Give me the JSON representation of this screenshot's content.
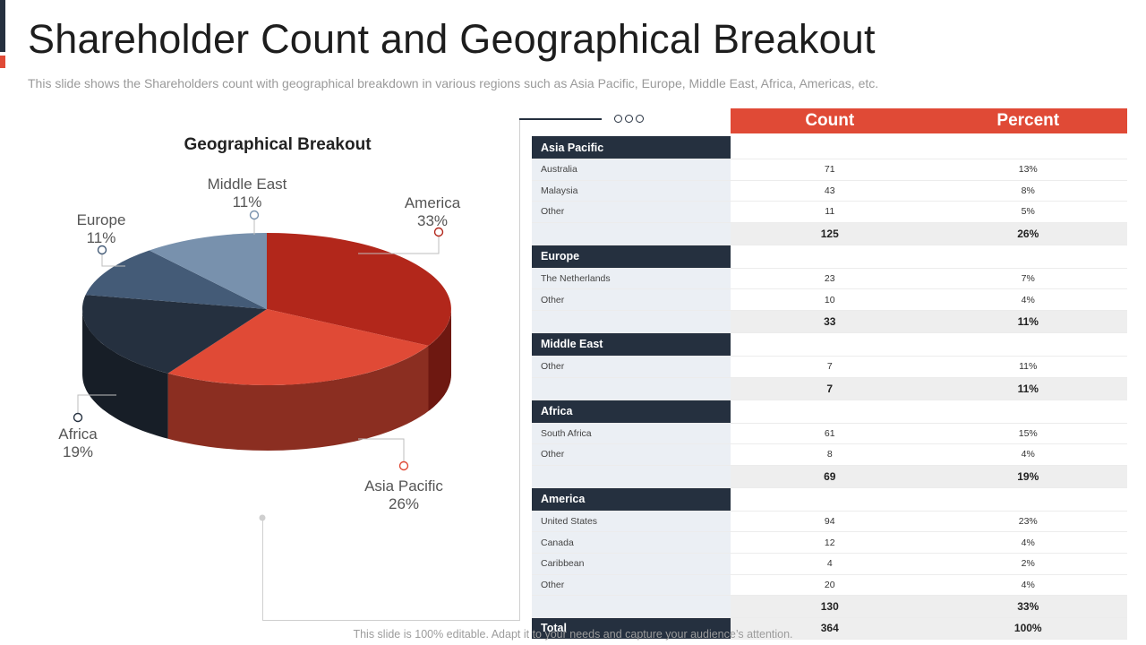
{
  "title": "Shareholder Count and Geographical Breakout",
  "subtitle": "This slide shows the Shareholders count with geographical breakdown in various regions such as Asia Pacific, Europe, Middle  East, Africa, Americas, etc.",
  "footer": "This slide is 100% editable. Adapt it to your needs and capture your audience’s attention.",
  "colors": {
    "accent": "#e04a36",
    "dark": "#25303f",
    "america": "#b2271b",
    "asia_pacific": "#e04a36",
    "africa": "#25303f",
    "europe": "#445b77",
    "middle_east": "#7891ad"
  },
  "chart_data": {
    "type": "pie",
    "title": "Geographical Breakout",
    "slices": [
      {
        "label": "America",
        "value": 33,
        "display": "33%"
      },
      {
        "label": "Asia Pacific",
        "value": 26,
        "display": "26%"
      },
      {
        "label": "Africa",
        "value": 19,
        "display": "19%"
      },
      {
        "label": "Europe",
        "value": 11,
        "display": "11%"
      },
      {
        "label": "Middle East",
        "value": 11,
        "display": "11%"
      }
    ]
  },
  "table": {
    "headers": {
      "count": "Count",
      "percent": "Percent"
    },
    "groups": [
      {
        "name": "Asia Pacific",
        "rows": [
          {
            "label": "Australia",
            "count": "71",
            "percent": "13%"
          },
          {
            "label": "Malaysia",
            "count": "43",
            "percent": "8%"
          },
          {
            "label": "Other",
            "count": "11",
            "percent": "5%"
          }
        ],
        "subtotal": {
          "count": "125",
          "percent": "26%"
        }
      },
      {
        "name": "Europe",
        "rows": [
          {
            "label": "The Netherlands",
            "count": "23",
            "percent": "7%"
          },
          {
            "label": "Other",
            "count": "10",
            "percent": "4%"
          }
        ],
        "subtotal": {
          "count": "33",
          "percent": "11%"
        }
      },
      {
        "name": "Middle East",
        "rows": [
          {
            "label": "Other",
            "count": "7",
            "percent": "11%"
          }
        ],
        "subtotal": {
          "count": "7",
          "percent": "11%"
        }
      },
      {
        "name": "Africa",
        "rows": [
          {
            "label": "South Africa",
            "count": "61",
            "percent": "15%"
          },
          {
            "label": "Other",
            "count": "8",
            "percent": "4%"
          }
        ],
        "subtotal": {
          "count": "69",
          "percent": "19%"
        }
      },
      {
        "name": "America",
        "rows": [
          {
            "label": "United States",
            "count": "94",
            "percent": "23%"
          },
          {
            "label": "Canada",
            "count": "12",
            "percent": "4%"
          },
          {
            "label": "Caribbean",
            "count": "4",
            "percent": "2%"
          },
          {
            "label": "Other",
            "count": "20",
            "percent": "4%"
          }
        ],
        "subtotal": {
          "count": "130",
          "percent": "33%"
        }
      }
    ],
    "total": {
      "label": "Total",
      "count": "364",
      "percent": "100%"
    }
  }
}
